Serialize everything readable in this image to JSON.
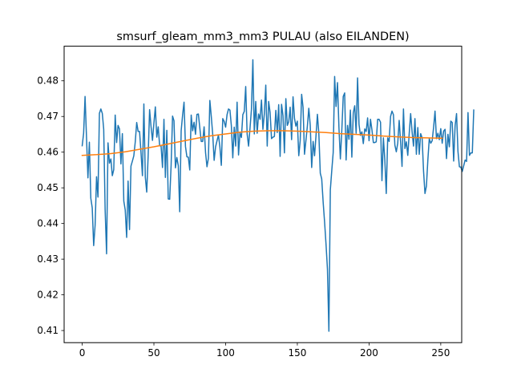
{
  "chart_data": {
    "type": "line",
    "title": "smsurf_gleam_mm3_mm3 PULAU (also EILANDEN)",
    "xlabel": "",
    "ylabel": "",
    "xlim": [
      -12.6,
      264.6
    ],
    "ylim": [
      0.4066,
      0.4897
    ],
    "x_ticks": [
      0,
      50,
      100,
      150,
      200,
      250
    ],
    "y_ticks": [
      0.41,
      0.42,
      0.43,
      0.44,
      0.45,
      0.46,
      0.47,
      0.48
    ],
    "grid": false,
    "series": [
      {
        "color": "#1f77b4",
        "x_start": 0,
        "x_step": 1,
        "values": [
          0.4618,
          0.4653,
          0.4756,
          0.4642,
          0.4528,
          0.4628,
          0.4471,
          0.4444,
          0.4338,
          0.4395,
          0.4531,
          0.4474,
          0.4709,
          0.4721,
          0.4709,
          0.4664,
          0.4438,
          0.4315,
          0.4626,
          0.4569,
          0.4581,
          0.4534,
          0.4551,
          0.4704,
          0.4627,
          0.4675,
          0.4665,
          0.4567,
          0.4652,
          0.4463,
          0.4438,
          0.4361,
          0.4519,
          0.4383,
          0.4561,
          0.4575,
          0.459,
          0.4629,
          0.4683,
          0.4658,
          0.4658,
          0.4599,
          0.4534,
          0.4735,
          0.453,
          0.4488,
          0.4591,
          0.4719,
          0.4672,
          0.4633,
          0.4681,
          0.4727,
          0.4642,
          0.4671,
          0.4618,
          0.4617,
          0.4557,
          0.4692,
          0.4529,
          0.4661,
          0.4469,
          0.4468,
          0.4563,
          0.4701,
          0.4688,
          0.4556,
          0.4585,
          0.4562,
          0.4433,
          0.466,
          0.4704,
          0.474,
          0.4616,
          0.4587,
          0.4586,
          0.455,
          0.4704,
          0.466,
          0.4684,
          0.465,
          0.4706,
          0.4707,
          0.4668,
          0.463,
          0.463,
          0.4671,
          0.4599,
          0.4559,
          0.4583,
          0.4745,
          0.47,
          0.465,
          0.4577,
          0.4615,
          0.4632,
          0.4648,
          0.4615,
          0.4563,
          0.4694,
          0.4686,
          0.467,
          0.4705,
          0.4721,
          0.4718,
          0.4674,
          0.4584,
          0.467,
          0.4617,
          0.474,
          0.4592,
          0.4654,
          0.4641,
          0.4705,
          0.4714,
          0.4784,
          0.4651,
          0.4617,
          0.4667,
          0.472,
          0.4859,
          0.4651,
          0.4742,
          0.4653,
          0.4707,
          0.4692,
          0.4746,
          0.4664,
          0.4708,
          0.4788,
          0.4617,
          0.4742,
          0.4711,
          0.4638,
          0.4642,
          0.4644,
          0.4717,
          0.4655,
          0.4733,
          0.4588,
          0.4734,
          0.4702,
          0.4598,
          0.475,
          0.4675,
          0.4685,
          0.4726,
          0.4635,
          0.4755,
          0.4695,
          0.4673,
          0.4687,
          0.459,
          0.4632,
          0.4762,
          0.4725,
          0.4594,
          0.4633,
          0.4673,
          0.4723,
          0.4675,
          0.4557,
          0.463,
          0.459,
          0.4645,
          0.4706,
          0.4652,
          0.4541,
          0.4525,
          0.446,
          0.4404,
          0.4342,
          0.4272,
          0.4098,
          0.4494,
          0.4548,
          0.4599,
          0.4812,
          0.4728,
          0.4795,
          0.467,
          0.4581,
          0.466,
          0.4756,
          0.4766,
          0.4578,
          0.4675,
          0.4636,
          0.4718,
          0.4586,
          0.471,
          0.473,
          0.4653,
          0.4808,
          0.4678,
          0.4647,
          0.4657,
          0.4624,
          0.4665,
          0.4658,
          0.4696,
          0.4632,
          0.4692,
          0.4663,
          0.4627,
          0.4627,
          0.4629,
          0.4692,
          0.4692,
          0.4684,
          0.452,
          0.464,
          0.4578,
          0.4484,
          0.464,
          0.463,
          0.47,
          0.4715,
          0.4705,
          0.462,
          0.4601,
          0.4625,
          0.4689,
          0.4629,
          0.456,
          0.4721,
          0.461,
          0.4629,
          0.4591,
          0.4652,
          0.4708,
          0.4658,
          0.4617,
          0.4694,
          0.4594,
          0.4669,
          0.4594,
          0.4652,
          0.464,
          0.4547,
          0.4484,
          0.4505,
          0.4578,
          0.4638,
          0.4625,
          0.4632,
          0.4669,
          0.4715,
          0.4638,
          0.4653,
          0.4635,
          0.4666,
          0.4625,
          0.4659,
          0.4664,
          0.4582,
          0.465,
          0.4615,
          0.4687,
          0.4683,
          0.4575,
          0.4674,
          0.4708,
          0.4602,
          0.4559,
          0.4558,
          0.4546,
          0.4562,
          0.4578,
          0.4574,
          0.4711,
          0.4591,
          0.4598,
          0.4598,
          0.4718
        ]
      },
      {
        "color": "#ff7f0e",
        "x": [
          0,
          10,
          20,
          30,
          40,
          50,
          60,
          70,
          80,
          90,
          100,
          110,
          120,
          130,
          140,
          150,
          160,
          170,
          180,
          190,
          200,
          210,
          220,
          230,
          240,
          251
        ],
        "values": [
          0.4591,
          0.4593,
          0.4596,
          0.4601,
          0.4608,
          0.4615,
          0.4623,
          0.4631,
          0.4639,
          0.4646,
          0.4651,
          0.4656,
          0.4659,
          0.466,
          0.466,
          0.4659,
          0.4657,
          0.4655,
          0.4652,
          0.465,
          0.4648,
          0.4645,
          0.4643,
          0.4641,
          0.464,
          0.4639
        ]
      }
    ]
  }
}
